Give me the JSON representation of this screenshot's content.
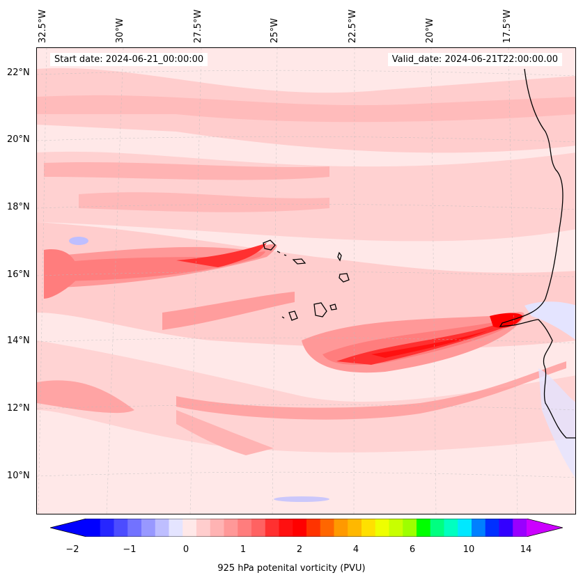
{
  "info": {
    "start_date": "Start date: 2024-06-21_00:00:00",
    "valid_date": "Valid_date: 2024-06-21T22:00:00.00"
  },
  "lon_labels": [
    "32.5°W",
    "30°W",
    "27.5°W",
    "25°W",
    "22.5°W",
    "20°W",
    "17.5°W"
  ],
  "lat_labels": [
    "22°N",
    "20°N",
    "18°N",
    "16°N",
    "14°N",
    "12°N",
    "10°N"
  ],
  "colorbar": {
    "label": "925 hPa potenital vorticity (PVU)",
    "ticks": [
      "−2",
      "−1",
      "0",
      "1",
      "2",
      "4",
      "6",
      "10",
      "14"
    ],
    "colors": [
      "#0000ff",
      "#2626ff",
      "#4c4cff",
      "#7272ff",
      "#9898ff",
      "#bebeff",
      "#e4e4ff",
      "#ffe8e8",
      "#ffcdcd",
      "#ffb3b3",
      "#ff9898",
      "#ff7d7d",
      "#ff6262",
      "#ff3030",
      "#ff1010",
      "#ff0000",
      "#ff3300",
      "#ff6600",
      "#ff9900",
      "#ffb800",
      "#ffe000",
      "#eeff00",
      "#c8ff00",
      "#9dff00",
      "#00ff00",
      "#00ff80",
      "#00ffc0",
      "#00e8ff",
      "#0080ff",
      "#0030ff",
      "#3300ff",
      "#9900ff"
    ],
    "extend_low_color": "#0000ff",
    "extend_high_color": "#cc00ff"
  }
}
